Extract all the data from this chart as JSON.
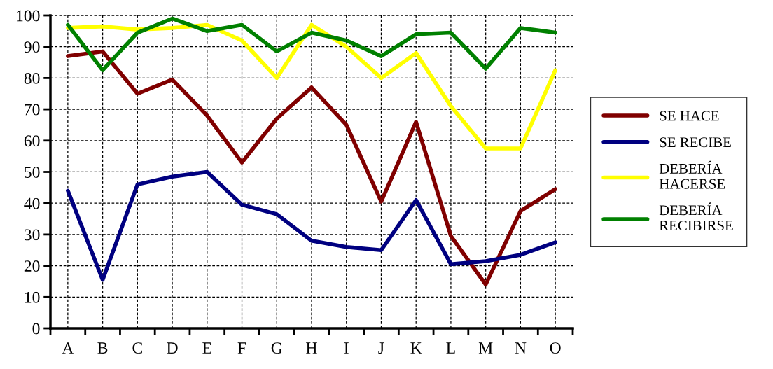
{
  "chart_data": {
    "type": "line",
    "categories": [
      "A",
      "B",
      "C",
      "D",
      "E",
      "F",
      "G",
      "H",
      "I",
      "J",
      "K",
      "L",
      "M",
      "N",
      "O"
    ],
    "series": [
      {
        "name": "SE HACE",
        "color": "#800000",
        "values": [
          87,
          88.5,
          75,
          79.5,
          68,
          53,
          67,
          77,
          65,
          40.5,
          66,
          29.5,
          14,
          37.5,
          44.5
        ]
      },
      {
        "name": "SE RECIBE",
        "color": "#000080",
        "values": [
          44,
          15.5,
          46,
          48.5,
          50,
          39.5,
          36.5,
          28,
          26,
          25,
          41,
          20.5,
          21.5,
          23.5,
          27.5
        ]
      },
      {
        "name": "DEBERÍA HACERSE",
        "color": "#ffff00",
        "values": [
          96,
          96.5,
          95.5,
          96,
          97,
          92,
          80,
          97,
          90,
          80,
          88,
          71,
          57.5,
          57.5,
          82.5
        ]
      },
      {
        "name": "DEBERÍA RECIBIRSE",
        "color": "#008000",
        "values": [
          97,
          82.5,
          94.5,
          99,
          95,
          97,
          88.5,
          94.5,
          92,
          87,
          94,
          94.5,
          83,
          96,
          94.5
        ]
      }
    ],
    "ylim": [
      0,
      100
    ],
    "yticks": [
      0,
      10,
      20,
      30,
      40,
      50,
      60,
      70,
      80,
      90,
      100
    ],
    "grid": true,
    "legend": "right",
    "marker": "none",
    "line_style": "solid"
  }
}
